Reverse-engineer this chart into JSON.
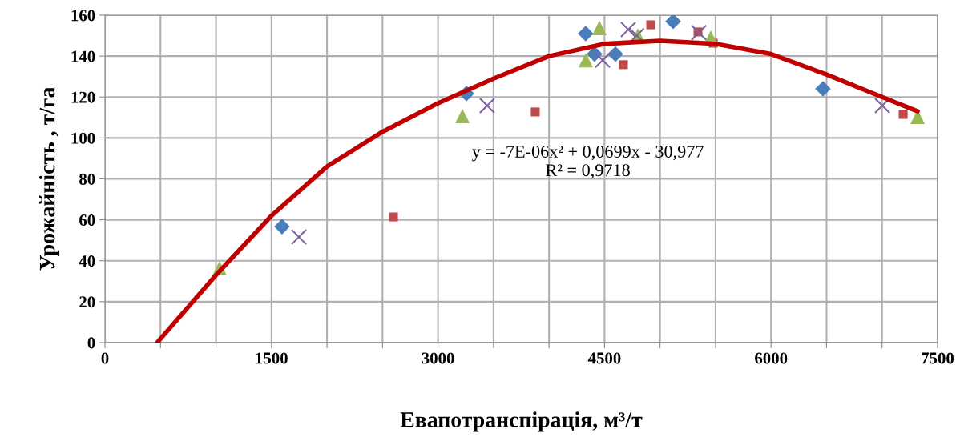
{
  "chart_data": {
    "type": "scatter",
    "xlabel": "Евапотранспірація, м³/т",
    "ylabel": "Урожайність , т/га",
    "xlim": [
      0,
      7500
    ],
    "ylim": [
      0,
      160
    ],
    "xticks": [
      0,
      {
        "value": 500,
        "label": null
      },
      {
        "value": 1000,
        "label": null
      },
      1500,
      {
        "value": 2000,
        "label": null
      },
      {
        "value": 2500,
        "label": null
      },
      3000,
      {
        "value": 3500,
        "label": null
      },
      {
        "value": 4000,
        "label": null
      },
      4500,
      {
        "value": 5000,
        "label": null
      },
      {
        "value": 5500,
        "label": null
      },
      6000,
      {
        "value": 6500,
        "label": null
      },
      {
        "value": 7000,
        "label": null
      },
      7500
    ],
    "yticks": [
      0,
      20,
      40,
      60,
      80,
      100,
      120,
      140,
      160
    ],
    "grid": true,
    "legend": false,
    "series": [
      {
        "marker": "diamond",
        "color": "#4a7ebb",
        "x": [
          1595,
          3256,
          4330,
          4410,
          4598,
          5118,
          6468
        ],
        "values": [
          56.7,
          121.7,
          151,
          141,
          141,
          157,
          124
        ]
      },
      {
        "marker": "square",
        "color": "#be4b48",
        "x": [
          2599,
          3876,
          4670,
          4916,
          5342,
          5479,
          7190
        ],
        "values": [
          61.4,
          112.7,
          135.8,
          155.3,
          151.8,
          146.3,
          111.5
        ]
      },
      {
        "marker": "triangle",
        "color": "#98b954",
        "x": [
          1032,
          3220,
          4331,
          4454,
          4800,
          5457,
          7320
        ],
        "values": [
          36.4,
          110.7,
          138,
          153.8,
          150,
          149,
          110.3
        ]
      },
      {
        "marker": "cross",
        "color": "#7d60a0",
        "x": [
          1747,
          3443,
          4483,
          4714,
          4790,
          5350,
          7002
        ],
        "values": [
          51.6,
          115.8,
          138,
          153,
          150,
          151.5,
          115.8
        ]
      },
      {
        "type": "line",
        "marker": "none",
        "line_style": "solid",
        "color": "#c00000",
        "x": [
          470,
          1000,
          1500,
          2000,
          2500,
          3000,
          3500,
          4000,
          4500,
          5000,
          5500,
          6000,
          6500,
          7000,
          7320
        ],
        "values": [
          0,
          33,
          62,
          86,
          103,
          117,
          129,
          140,
          146,
          147.5,
          146,
          141,
          131,
          120,
          113
        ]
      }
    ],
    "annotations": [
      "y = -7E-06x² + 0,0699x - 30,977\nR² = 0,9718"
    ]
  }
}
